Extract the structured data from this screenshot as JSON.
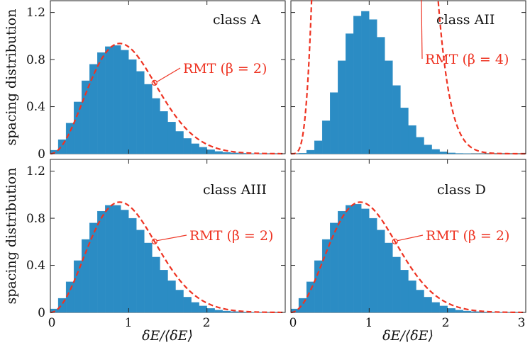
{
  "chart_data": [
    {
      "type": "bar",
      "panel": "top-left",
      "class_label": "class A",
      "rmt_label": "RMT (β = 2)",
      "beta": 2,
      "xlim": [
        0,
        3
      ],
      "ylim": [
        0,
        1.3
      ],
      "yticks": [
        "0",
        "0.4",
        "0.8",
        "1.2"
      ],
      "xticks": [],
      "ylabel": "spacing distribution",
      "xlabel": "",
      "annotation_s": 1.33,
      "x": [
        0.1,
        0.2,
        0.3,
        0.4,
        0.5,
        0.6,
        0.7,
        0.8,
        0.9,
        1.0,
        1.1,
        1.2,
        1.3,
        1.4,
        1.5,
        1.6,
        1.7,
        1.8,
        1.9,
        2.0,
        2.1,
        2.2,
        2.3,
        2.4,
        2.5,
        2.6,
        2.7,
        2.8,
        2.9
      ],
      "values": [
        0.03,
        0.12,
        0.26,
        0.44,
        0.62,
        0.76,
        0.86,
        0.91,
        0.92,
        0.88,
        0.8,
        0.7,
        0.59,
        0.47,
        0.36,
        0.27,
        0.19,
        0.13,
        0.085,
        0.055,
        0.034,
        0.02,
        0.012,
        0.007,
        0.004,
        0.002,
        0.001,
        0.0005,
        0.0002
      ]
    },
    {
      "type": "bar",
      "panel": "top-right",
      "class_label": "class AII",
      "rmt_label": "RMT (β = 4)",
      "beta": 4,
      "xlim": [
        0,
        3
      ],
      "ylim": [
        0,
        1.3
      ],
      "yticks": [],
      "xticks": [],
      "ylabel": "",
      "xlabel": "",
      "annotation_s": 1.33,
      "x": [
        0.1,
        0.2,
        0.3,
        0.4,
        0.5,
        0.6,
        0.7,
        0.8,
        0.9,
        1.0,
        1.1,
        1.2,
        1.3,
        1.4,
        1.5,
        1.6,
        1.7,
        1.8,
        1.9,
        2.0,
        2.1,
        2.2,
        2.3,
        2.4,
        2.5,
        2.6,
        2.7,
        2.8,
        2.9
      ],
      "values": [
        0.0003,
        0.005,
        0.03,
        0.11,
        0.28,
        0.52,
        0.79,
        1.02,
        1.17,
        1.21,
        1.14,
        0.99,
        0.79,
        0.58,
        0.39,
        0.24,
        0.14,
        0.075,
        0.037,
        0.017,
        0.007,
        0.003,
        0.001,
        0.0004,
        0.0001,
        0,
        0,
        0,
        0
      ]
    },
    {
      "type": "bar",
      "panel": "bottom-left",
      "class_label": "class AIII",
      "rmt_label": "RMT (β = 2)",
      "beta": 2,
      "xlim": [
        0,
        3
      ],
      "ylim": [
        0,
        1.3
      ],
      "yticks": [
        "0",
        "0.4",
        "0.8",
        "1.2"
      ],
      "xticks": [
        "0",
        "1",
        "2"
      ],
      "ylabel": "spacing distribution",
      "xlabel": "δE/⟨δE⟩",
      "annotation_s": 1.33,
      "x": [
        0.1,
        0.2,
        0.3,
        0.4,
        0.5,
        0.6,
        0.7,
        0.8,
        0.9,
        1.0,
        1.1,
        1.2,
        1.3,
        1.4,
        1.5,
        1.6,
        1.7,
        1.8,
        1.9,
        2.0,
        2.1,
        2.2,
        2.3,
        2.4,
        2.5,
        2.6,
        2.7,
        2.8,
        2.9
      ],
      "values": [
        0.03,
        0.12,
        0.26,
        0.44,
        0.62,
        0.76,
        0.86,
        0.91,
        0.91,
        0.87,
        0.8,
        0.7,
        0.59,
        0.47,
        0.36,
        0.27,
        0.19,
        0.13,
        0.085,
        0.055,
        0.034,
        0.02,
        0.012,
        0.007,
        0.004,
        0.002,
        0.001,
        0.0005,
        0.0002
      ]
    },
    {
      "type": "bar",
      "panel": "bottom-right",
      "class_label": "class D",
      "rmt_label": "RMT (β = 2)",
      "beta": 2,
      "xlim": [
        0,
        3
      ],
      "ylim": [
        0,
        1.3
      ],
      "yticks": [],
      "xticks": [
        "0",
        "1",
        "2",
        "3"
      ],
      "ylabel": "",
      "xlabel": "δE/⟨δE⟩",
      "annotation_s": 1.33,
      "x": [
        0.1,
        0.2,
        0.3,
        0.4,
        0.5,
        0.6,
        0.7,
        0.8,
        0.9,
        1.0,
        1.1,
        1.2,
        1.3,
        1.4,
        1.5,
        1.6,
        1.7,
        1.8,
        1.9,
        2.0,
        2.1,
        2.2,
        2.3,
        2.4,
        2.5,
        2.6,
        2.7,
        2.8,
        2.9
      ],
      "values": [
        0.03,
        0.12,
        0.26,
        0.44,
        0.62,
        0.76,
        0.86,
        0.91,
        0.92,
        0.88,
        0.8,
        0.7,
        0.59,
        0.47,
        0.36,
        0.27,
        0.19,
        0.13,
        0.085,
        0.055,
        0.034,
        0.02,
        0.012,
        0.007,
        0.004,
        0.002,
        0.001,
        0.0005,
        0.0002
      ]
    }
  ],
  "colors": {
    "bars": "#2b8cc4",
    "rmt_curve": "#ee3322",
    "axes": "#222222"
  }
}
